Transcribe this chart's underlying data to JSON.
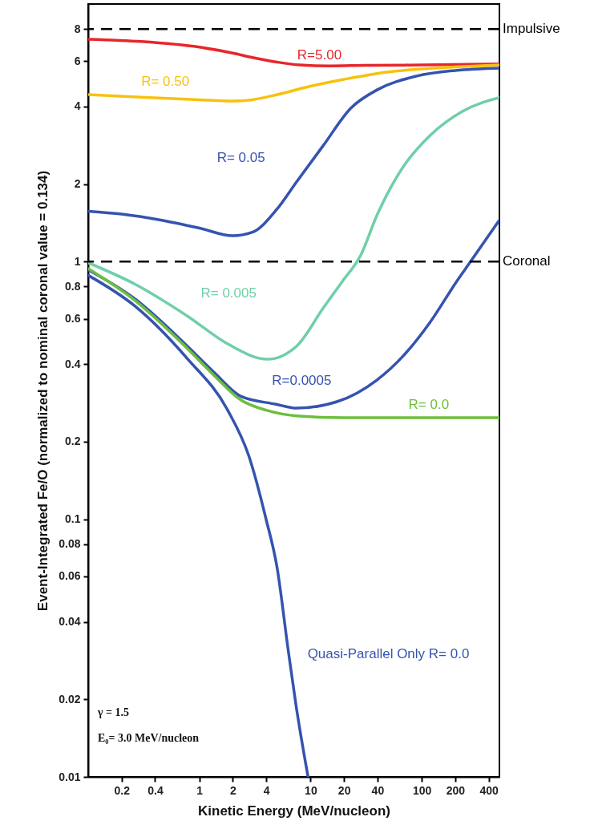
{
  "chart_data": {
    "type": "line",
    "xlabel": "Kinetic Energy (MeV/nucleon)",
    "ylabel": "Event-Integrated Fe/O (normalized to nominal coronal value = 0.134)",
    "log": "xy",
    "xlim": [
      0.1,
      500
    ],
    "ylim": [
      0.01,
      10
    ],
    "xticks": [
      0.2,
      0.4,
      1,
      2,
      4,
      10,
      20,
      40,
      100,
      200,
      400
    ],
    "yticks": [
      0.01,
      0.02,
      0.04,
      0.06,
      0.08,
      0.1,
      0.2,
      0.4,
      0.6,
      0.8,
      1,
      2,
      4,
      6,
      8
    ],
    "series": [
      {
        "name": "R=5.00",
        "color": "#e8262a",
        "x": [
          0.1,
          0.3,
          1,
          2,
          3,
          5,
          8,
          15,
          30,
          100,
          500
        ],
        "values": [
          7.3,
          7.15,
          6.8,
          6.45,
          6.2,
          5.95,
          5.8,
          5.75,
          5.78,
          5.8,
          5.85
        ]
      },
      {
        "name": "R= 0.50",
        "color": "#f7c20e",
        "x": [
          0.1,
          0.3,
          1,
          2,
          3,
          5,
          10,
          20,
          50,
          100,
          200,
          500
        ],
        "values": [
          4.45,
          4.35,
          4.25,
          4.2,
          4.25,
          4.45,
          4.8,
          5.1,
          5.45,
          5.6,
          5.7,
          5.8
        ]
      },
      {
        "name": "R= 0.05",
        "color": "#3553b0",
        "x": [
          0.1,
          0.2,
          0.45,
          1,
          2,
          3,
          5,
          7.5,
          13,
          23,
          40,
          90,
          200,
          500
        ],
        "values": [
          1.57,
          1.53,
          1.45,
          1.35,
          1.26,
          1.3,
          1.6,
          2.04,
          2.82,
          3.94,
          4.65,
          5.25,
          5.52,
          5.64
        ]
      },
      {
        "name": "R= 0.005",
        "color": "#6fcfa8",
        "x": [
          0.1,
          0.26,
          0.78,
          1.79,
          4.1,
          7.5,
          13,
          19.4,
          28.3,
          39.5,
          68,
          120,
          232,
          500
        ],
        "values": [
          0.99,
          0.82,
          0.615,
          0.48,
          0.418,
          0.47,
          0.66,
          0.84,
          1.06,
          1.51,
          2.33,
          3.1,
          3.83,
          4.33
        ]
      },
      {
        "name": "R=0.0005",
        "color": "#3553b0",
        "x": [
          0.1,
          0.26,
          0.78,
          1.37,
          2.37,
          4.8,
          7.5,
          17.3,
          39.5,
          68,
          120,
          207,
          275,
          500
        ],
        "values": [
          0.93,
          0.72,
          0.47,
          0.37,
          0.3,
          0.28,
          0.27,
          0.286,
          0.347,
          0.43,
          0.585,
          0.84,
          1.0,
          1.45
        ]
      },
      {
        "name": "R= 0.0",
        "color": "#6cbf3c",
        "x": [
          0.1,
          0.26,
          0.78,
          1.37,
          2.37,
          4,
          7.5,
          20,
          500
        ],
        "values": [
          0.94,
          0.71,
          0.46,
          0.36,
          0.29,
          0.265,
          0.252,
          0.248,
          0.248
        ]
      },
      {
        "name": "Quasi-Parallel Only R= 0.0",
        "color": "#3553b0",
        "x": [
          0.1,
          0.26,
          0.78,
          1.79,
          2.8,
          3.96,
          5.0,
          6.3,
          7.4,
          9.5
        ],
        "values": [
          0.885,
          0.675,
          0.42,
          0.266,
          0.175,
          0.101,
          0.065,
          0.031,
          0.019,
          0.01
        ]
      }
    ],
    "ref_lines": [
      {
        "axis": "y",
        "value": 8,
        "label": "Impulsive",
        "color": "#000000",
        "line_style": "dashed"
      },
      {
        "axis": "y",
        "value": 1,
        "label": "Coronal",
        "color": "#000000",
        "line_style": "dashed"
      }
    ],
    "annotations": [
      "γ = 1.5",
      "E₀= 3.0 MeV/nucleon"
    ]
  }
}
